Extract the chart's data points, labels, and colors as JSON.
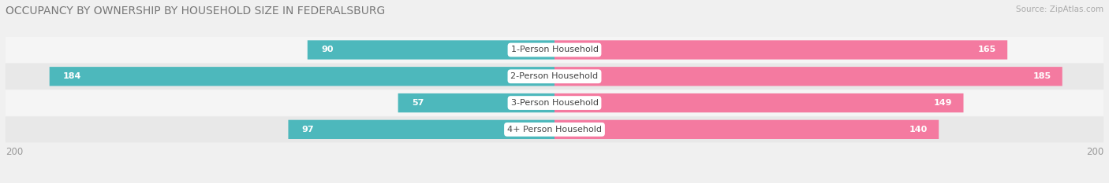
{
  "title": "OCCUPANCY BY OWNERSHIP BY HOUSEHOLD SIZE IN FEDERALSBURG",
  "source": "Source: ZipAtlas.com",
  "categories": [
    "1-Person Household",
    "2-Person Household",
    "3-Person Household",
    "4+ Person Household"
  ],
  "owner_values": [
    90,
    184,
    57,
    97
  ],
  "renter_values": [
    165,
    185,
    149,
    140
  ],
  "owner_color": "#4db8bc",
  "renter_color": "#f47aa0",
  "axis_max": 200,
  "row_colors": [
    "#f5f5f5",
    "#e8e8e8",
    "#f5f5f5",
    "#e8e8e8"
  ],
  "bg_color": "#f0f0f0",
  "title_fontsize": 10,
  "source_fontsize": 7.5,
  "label_fontsize": 8,
  "value_fontsize": 8,
  "tick_fontsize": 8.5
}
